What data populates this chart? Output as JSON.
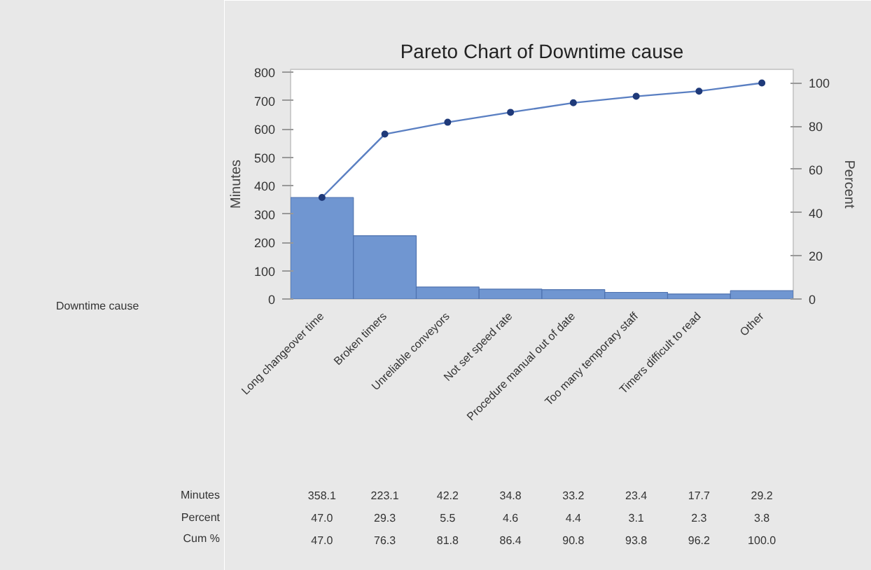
{
  "chart_data": {
    "type": "bar",
    "title": "Pareto Chart of Downtime cause",
    "ylabel": "Minutes",
    "y2label": "Percent",
    "annotations": [
      "Downtime cause",
      "Minutes",
      "Percent",
      "Cum %",
      "47.0",
      "29.3",
      "5.5",
      "4.6",
      "4.4",
      "3.1",
      "2.3",
      "3.8",
      "47.0",
      "76.3",
      "81.8",
      "86.4",
      "90.8",
      "93.8",
      "96.2",
      "100.0"
    ],
    "categories": [
      "Long changeover time",
      "Broken timers",
      "Unreliable conveyors",
      "Not set speed rate",
      "Procedure manual out of date",
      "Too many temporary staff",
      "Timers difficult to read",
      "Other"
    ],
    "series": [
      {
        "color": "#7096d1",
        "values": [
          358.1,
          223.1,
          42.2,
          34.8,
          33.2,
          23.4,
          17.7,
          29.2
        ],
        "value_labels": [
          "358.1",
          "223.1",
          "42.2",
          "34.8",
          "33.2",
          "23.4",
          "17.7",
          "29.2"
        ]
      },
      {
        "type": "line",
        "axis": "y2",
        "color": "#5a7fc2",
        "values": [
          47.0,
          76.3,
          81.8,
          86.4,
          90.8,
          93.8,
          96.2,
          100.0
        ]
      }
    ],
    "ylim": [
      0,
      810
    ],
    "yticks": [
      0,
      100,
      200,
      300,
      400,
      500,
      600,
      700,
      800
    ],
    "y2lim": [
      0,
      106.3
    ],
    "y2ticks": [
      0,
      20,
      40,
      60,
      80,
      100
    ],
    "marker": "circle",
    "grid": false
  }
}
